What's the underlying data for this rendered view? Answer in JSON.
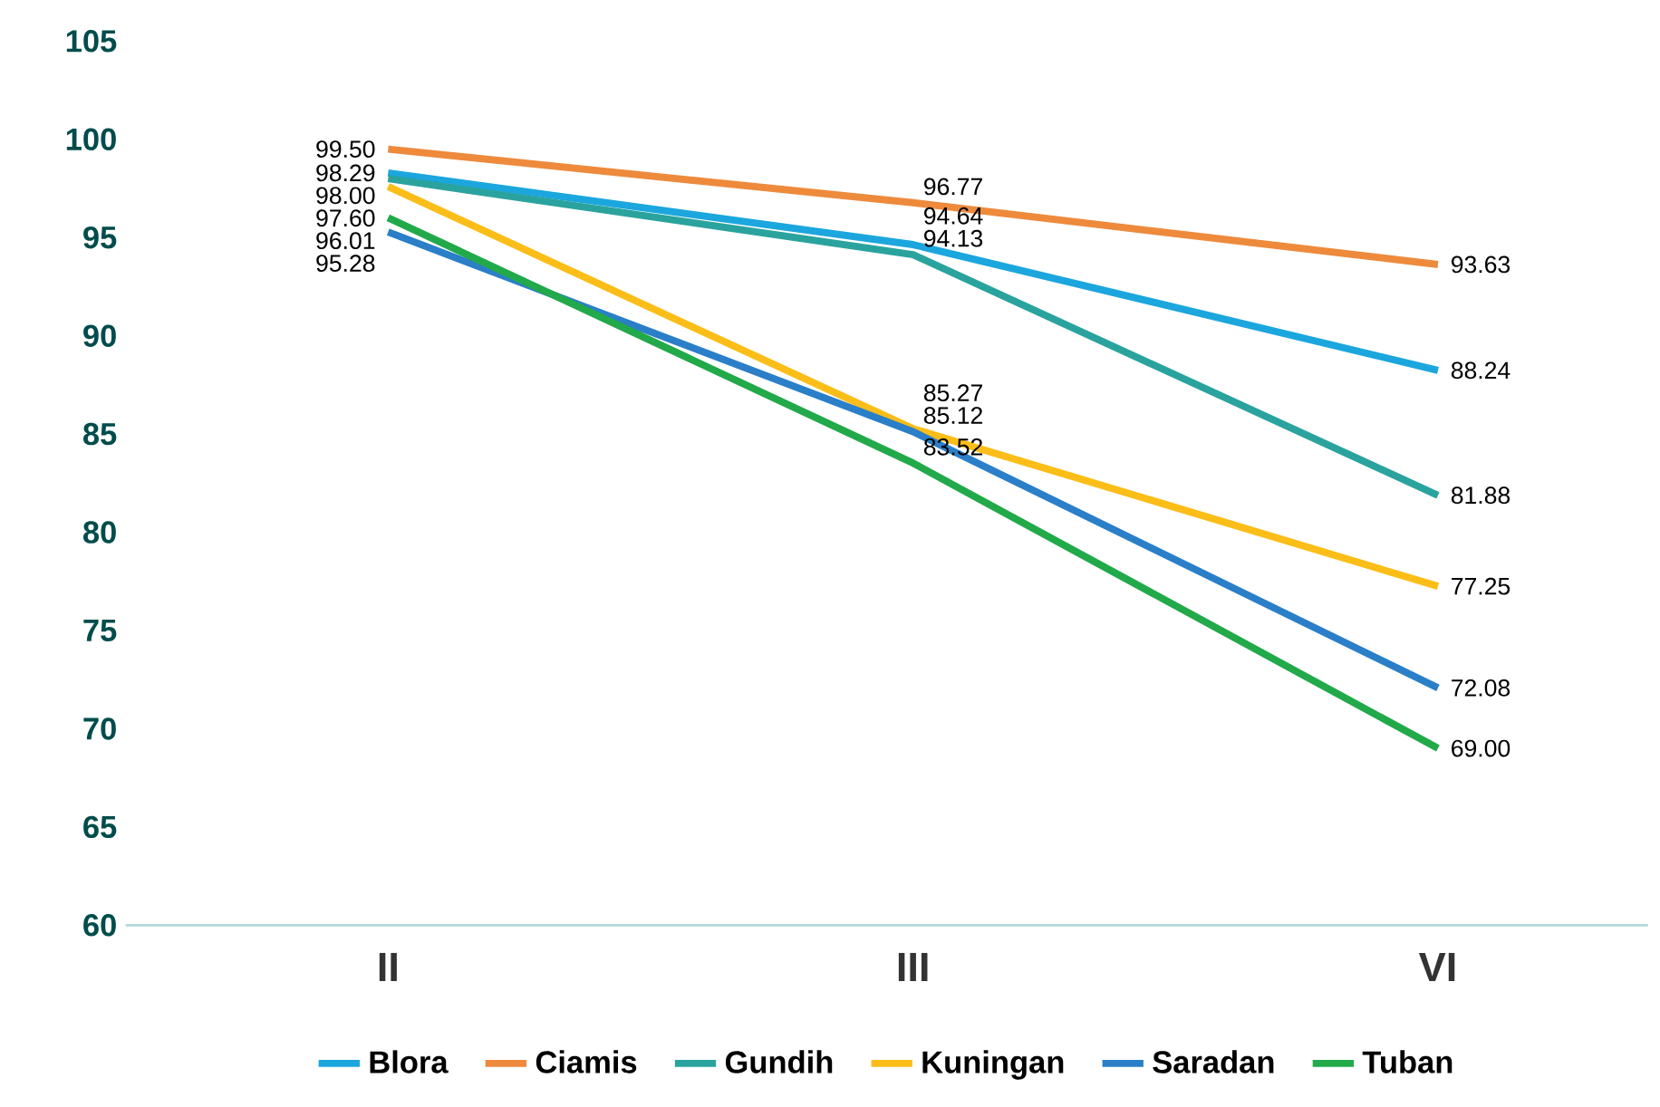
{
  "chart_data": {
    "type": "line",
    "categories": [
      "II",
      "III",
      "VI"
    ],
    "series": [
      {
        "name": "Blora",
        "color": "#1ca6de",
        "values": [
          98.29,
          94.64,
          88.24
        ],
        "value_labels": [
          "98.29",
          "94.64",
          "88.24"
        ]
      },
      {
        "name": "Ciamis",
        "color": "#ee8a3c",
        "values": [
          99.5,
          96.77,
          93.63
        ],
        "value_labels": [
          "99.50",
          "96.77",
          "93.63"
        ]
      },
      {
        "name": "Gundih",
        "color": "#2aa39e",
        "values": [
          98.0,
          94.13,
          81.88
        ],
        "value_labels": [
          "98.00",
          "94.13",
          "81.88"
        ]
      },
      {
        "name": "Kuningan",
        "color": "#fbbd17",
        "values": [
          97.6,
          85.27,
          77.25
        ],
        "value_labels": [
          "97.60",
          "85.27",
          "77.25"
        ]
      },
      {
        "name": "Saradan",
        "color": "#2a7fc8",
        "values": [
          95.28,
          85.12,
          72.08
        ],
        "value_labels": [
          "95.28",
          "85.12",
          "72.08"
        ]
      },
      {
        "name": "Tuban",
        "color": "#22a94a",
        "values": [
          96.01,
          83.52,
          69.0
        ],
        "value_labels": [
          "96.01",
          "83.52",
          "69.00"
        ]
      }
    ],
    "ylim": [
      60,
      105
    ],
    "yticks": [
      60,
      65,
      70,
      75,
      80,
      85,
      90,
      95,
      100,
      105
    ],
    "legend": "bottom",
    "marker": "none",
    "line_style": "solid"
  }
}
